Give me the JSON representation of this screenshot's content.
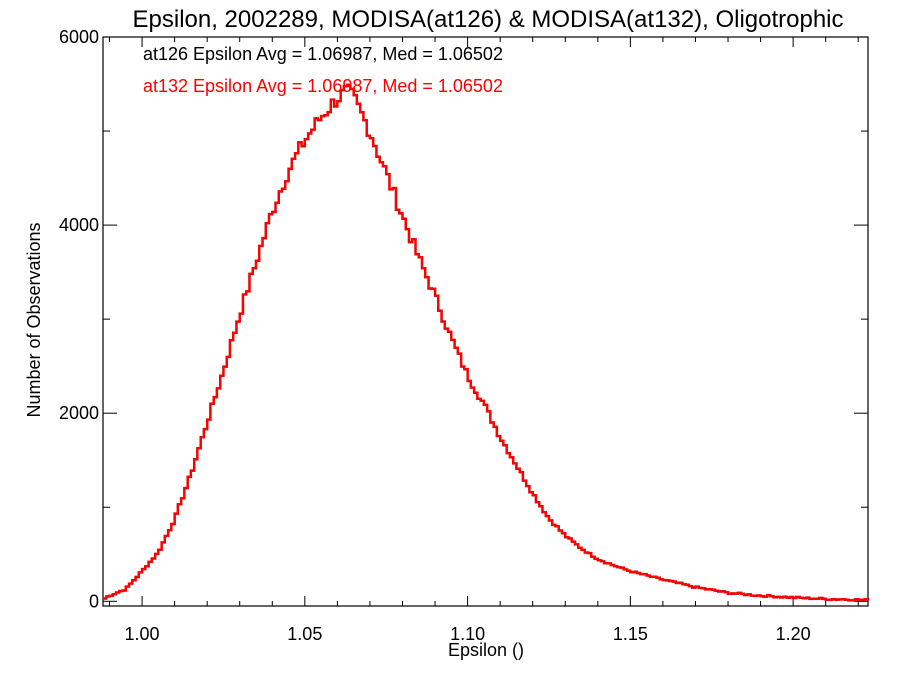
{
  "chart_data": {
    "type": "histogram",
    "title": "Epsilon, 2002289, MODISA(at126) & MODISA(at132), Oligotrophic",
    "xlabel": "Epsilon ()",
    "ylabel": "Number of Observations",
    "xlim": [
      0.988,
      1.223
    ],
    "ylim": [
      -50,
      6000
    ],
    "x_ticks": [
      1.0,
      1.05,
      1.1,
      1.15,
      1.2
    ],
    "x_tick_labels": [
      "1.00",
      "1.05",
      "1.10",
      "1.15",
      "1.20"
    ],
    "y_ticks": [
      0,
      2000,
      4000,
      6000
    ],
    "y_tick_labels": [
      "0",
      "2000",
      "4000",
      "6000"
    ],
    "annotations": [
      {
        "text": "at126 Epsilon Avg = 1.06987, Med = 1.06502",
        "color": "#000000"
      },
      {
        "text": "at132 Epsilon Avg = 1.06987, Med = 1.06502",
        "color": "#ff0000"
      }
    ],
    "series": [
      {
        "color": "#000000",
        "bin_width": 0.001,
        "x": [
          0.988,
          0.99,
          0.995,
          1.0,
          1.005,
          1.01,
          1.015,
          1.02,
          1.025,
          1.03,
          1.035,
          1.04,
          1.045,
          1.05,
          1.055,
          1.06,
          1.063,
          1.065,
          1.07,
          1.075,
          1.08,
          1.085,
          1.09,
          1.095,
          1.1,
          1.105,
          1.11,
          1.115,
          1.12,
          1.125,
          1.13,
          1.135,
          1.14,
          1.145,
          1.15,
          1.16,
          1.17,
          1.18,
          1.19,
          1.2,
          1.21,
          1.223
        ],
        "y": [
          20,
          60,
          130,
          320,
          520,
          870,
          1350,
          1900,
          2450,
          3050,
          3600,
          4150,
          4580,
          4900,
          5150,
          5350,
          5420,
          5350,
          5000,
          4550,
          4100,
          3650,
          3250,
          2800,
          2400,
          2100,
          1750,
          1450,
          1150,
          880,
          700,
          560,
          450,
          380,
          320,
          230,
          150,
          90,
          60,
          40,
          25,
          15
        ]
      },
      {
        "color": "#ff0000",
        "bin_width": 0.001,
        "x": [
          0.988,
          0.99,
          0.995,
          1.0,
          1.005,
          1.01,
          1.015,
          1.02,
          1.025,
          1.03,
          1.035,
          1.04,
          1.045,
          1.05,
          1.055,
          1.06,
          1.063,
          1.065,
          1.07,
          1.075,
          1.08,
          1.085,
          1.09,
          1.095,
          1.1,
          1.105,
          1.11,
          1.115,
          1.12,
          1.125,
          1.13,
          1.135,
          1.14,
          1.145,
          1.15,
          1.16,
          1.17,
          1.18,
          1.19,
          1.2,
          1.21,
          1.223
        ],
        "y": [
          20,
          60,
          130,
          320,
          520,
          870,
          1350,
          1900,
          2450,
          3050,
          3600,
          4150,
          4580,
          4900,
          5150,
          5350,
          5420,
          5350,
          5000,
          4550,
          4100,
          3650,
          3250,
          2800,
          2400,
          2100,
          1750,
          1450,
          1150,
          880,
          700,
          560,
          450,
          380,
          320,
          230,
          150,
          90,
          60,
          40,
          25,
          15
        ]
      }
    ]
  }
}
